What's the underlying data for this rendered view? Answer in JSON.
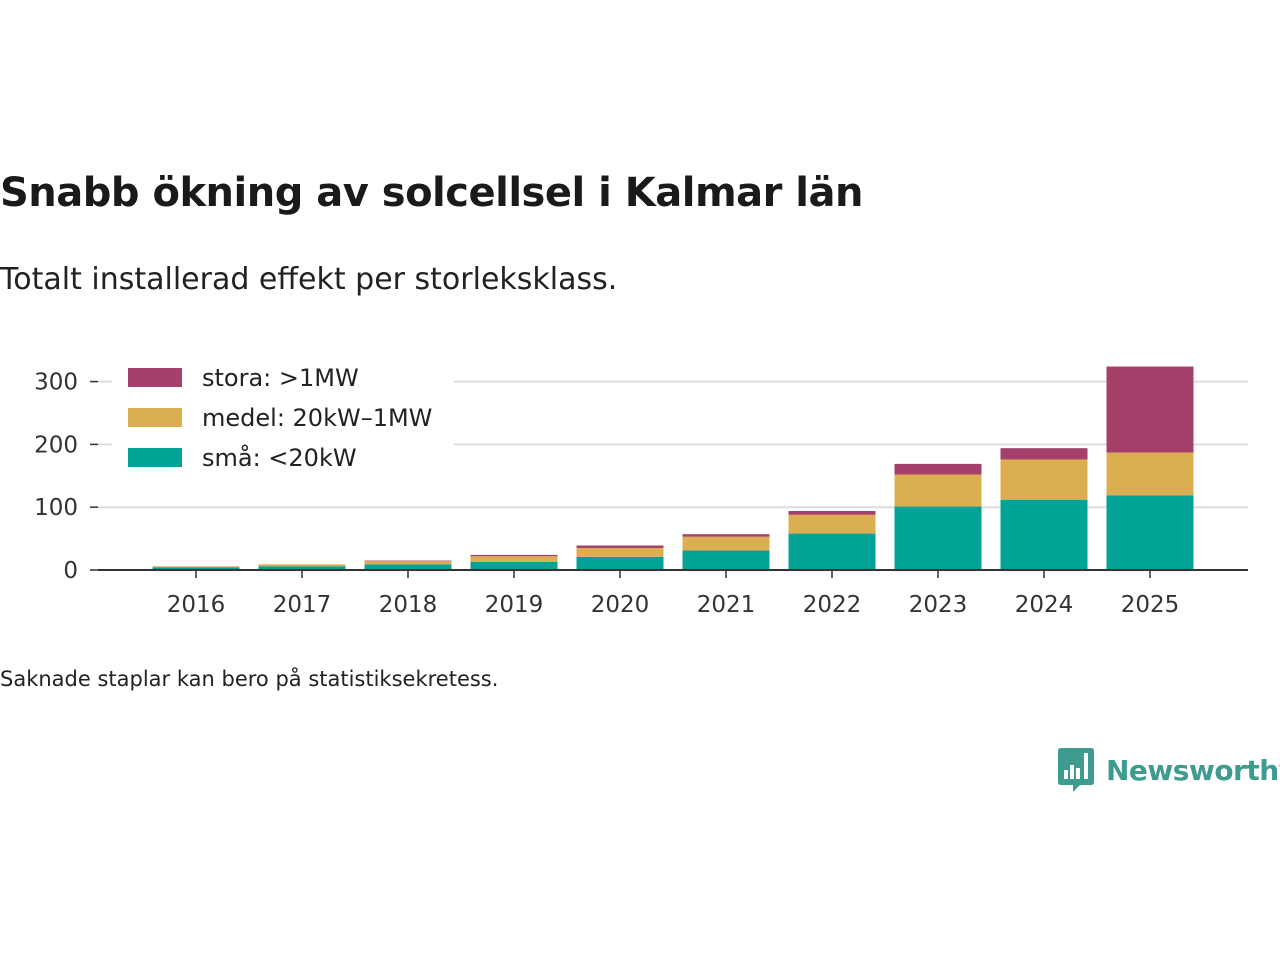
{
  "title": "Snabb ökning av solcellsel i Kalmar län",
  "subtitle": "Totalt installerad effekt per storleksklass.",
  "footnote": "Saknade staplar kan bero på statistiksekretess.",
  "brand": {
    "name": "Newsworthy",
    "color": "#3d9b8f",
    "icon": "bar-chart-speech-bubble-icon"
  },
  "chart_data": {
    "type": "bar",
    "stacked": true,
    "categories": [
      "2016",
      "2017",
      "2018",
      "2019",
      "2020",
      "2021",
      "2022",
      "2023",
      "2024",
      "2025"
    ],
    "series": [
      {
        "name": "små: <20kW",
        "color": "#00a396",
        "values": [
          4,
          6,
          9,
          13,
          21,
          31,
          58,
          101,
          112,
          119
        ]
      },
      {
        "name": "medel: 20kW–1MW",
        "color": "#dcae52",
        "values": [
          2,
          3,
          5,
          9,
          14,
          22,
          30,
          51,
          64,
          68
        ]
      },
      {
        "name": "stora: >1MW",
        "color": "#a5406a",
        "values": [
          0,
          0,
          1,
          2,
          4,
          4,
          6,
          17,
          18,
          137
        ]
      }
    ],
    "legend_order": [
      "stora: >1MW",
      "medel: 20kW–1MW",
      "små: <20kW"
    ],
    "legend_position": "top-left",
    "ylim": [
      0,
      330
    ],
    "yticks": [
      0,
      100,
      200,
      300
    ],
    "grid": true,
    "xlabel": "",
    "ylabel": ""
  }
}
